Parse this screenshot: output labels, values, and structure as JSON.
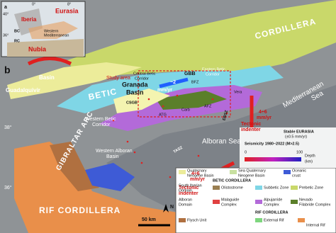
{
  "inset": {
    "panel": "a",
    "eurasia": "Eurasia",
    "iberia": "Iberia",
    "nubia": "Nubia",
    "western_med": "Western",
    "western_med2": "Mediterranean",
    "bc": "BC",
    "rc": "RC",
    "lat40": "40°",
    "lat36": "36°",
    "lon8": "8°",
    "lon0": "0°"
  },
  "map": {
    "panel": "b",
    "cordillera": "CORDILLERA",
    "guadalquivir": "Guadalquivir",
    "basin": "Basin",
    "betic": "BETIC",
    "study_area": "Study area",
    "central_betic": "Central Betic",
    "corridor": "Corridor",
    "granada": "Granada",
    "granada_basin": "Basin",
    "gbb": "GBB",
    "eastern_betic": "Eastern Betic",
    "eastern_corridor": "Corridor",
    "bfz": "BFZ",
    "csgb": "CSGB",
    "rate_eu": "~2",
    "rate_eu_unit": "mm/yr",
    "atg": "ATG",
    "carb": "Carb",
    "afz": "AFZ",
    "ebsz": "EBSZ",
    "vera": "Vera",
    "rate_nu": "4÷6",
    "rate_nu_unit": "mm/yr",
    "indenter": "Tectonic",
    "indenter2": "indenter",
    "western_betic": "Western Betic",
    "western_corridor": "Corridor",
    "mediterranean": "Mediterranean",
    "sea": "Sea",
    "alboran": "Alboran Sea",
    "tasz": "TASZ",
    "gibraltar": "GIBRALTAR ARC",
    "rate_sw": "4÷6",
    "rate_sw_unit": "mm/yr",
    "indenter_sw": "Tectonic",
    "indenter_sw2": "indenter",
    "western_alboran": "Western Alboran",
    "western_alboran2": "Basin",
    "rif": "RIF CORDILLERA",
    "lat38": "38°",
    "lat36": "36°"
  },
  "legend": {
    "stable": "Stable EURASIA",
    "stable_rate": "(±0.5 mm/yr)",
    "seismicity": "Seismicity 1980–2022 (M>2.5)",
    "depth0": "0",
    "depth100": "100",
    "depth": "Depth",
    "depth_unit": "(km)",
    "quaternary": "Quaternary",
    "quaternary2": "Neogene Basin",
    "sea_quaternary": "Sea Quaternary",
    "sea_quaternary2": "Neogene Basin",
    "oceanic": "Oceanic",
    "oceanic2": "crust",
    "betic_header": "BETIC CORDILLERA",
    "south_iberian": "South Iberian",
    "south_iberian2": "Domain",
    "olistostrome": "Olistostrome",
    "subbetic": "Subbetic Zone",
    "prebetic": "Prebetic Zone",
    "alboran_domain": "Alboran",
    "alboran_domain2": "Domain",
    "malaguide": "Malaguide",
    "malaguide2": "Complex",
    "alpujarride": "Alpujarride",
    "alpujarride2": "Complex",
    "nevado": "Nevado",
    "nevado2": "Filabride Complex",
    "flysch": "Flysch Unit",
    "rif_header": "RIF CORDILLERA",
    "external_rif": "External Rif",
    "internal_rif": "Internal Rif",
    "scale": "50 km",
    "north": "N"
  }
}
